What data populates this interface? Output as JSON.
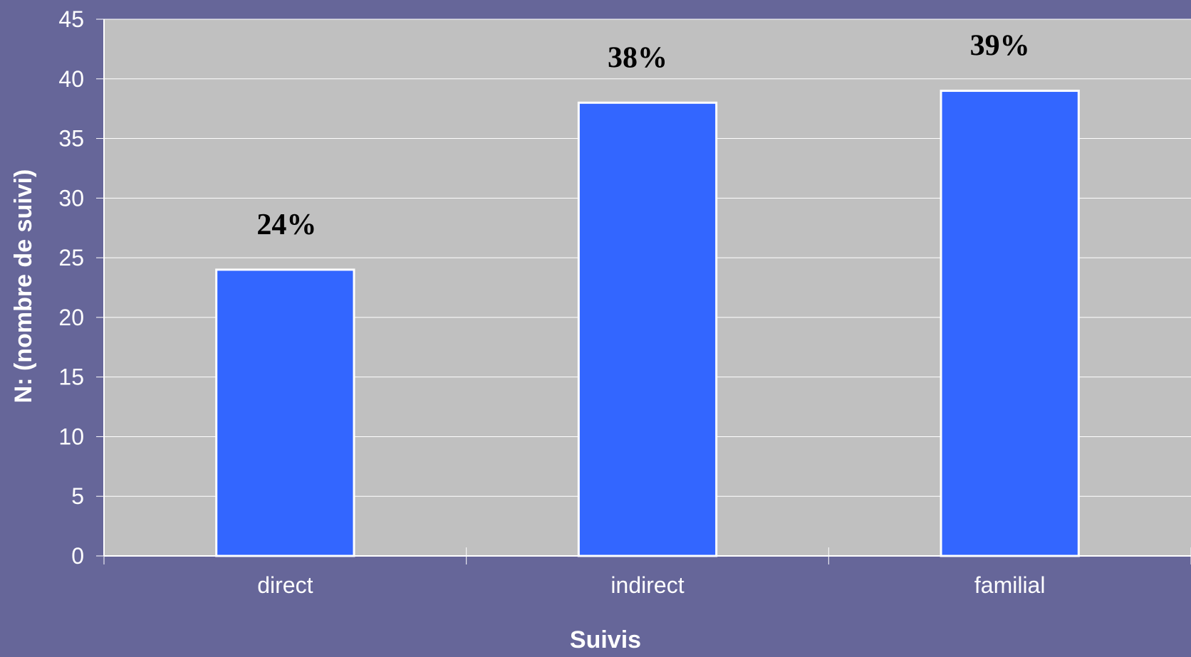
{
  "chart_data": {
    "type": "bar",
    "categories": [
      "direct",
      "indirect",
      "familial"
    ],
    "values": [
      24,
      38,
      39
    ],
    "data_labels": [
      "24%",
      "38%",
      "39%"
    ],
    "xlabel": "Suivis",
    "ylabel": "N: (nombre de suivi)",
    "ylim": [
      0,
      45
    ],
    "yticks": [
      0,
      5,
      10,
      15,
      20,
      25,
      30,
      35,
      40,
      45
    ],
    "grid": true,
    "legend": "none",
    "colors": {
      "background": "#666699",
      "plot_area": "#c0c0c0",
      "bar_fill": "#3366ff",
      "bar_stroke": "#ffffff",
      "gridline": "#ffffff",
      "axis_text": "#ffffff",
      "data_label_text": "#000000"
    }
  }
}
